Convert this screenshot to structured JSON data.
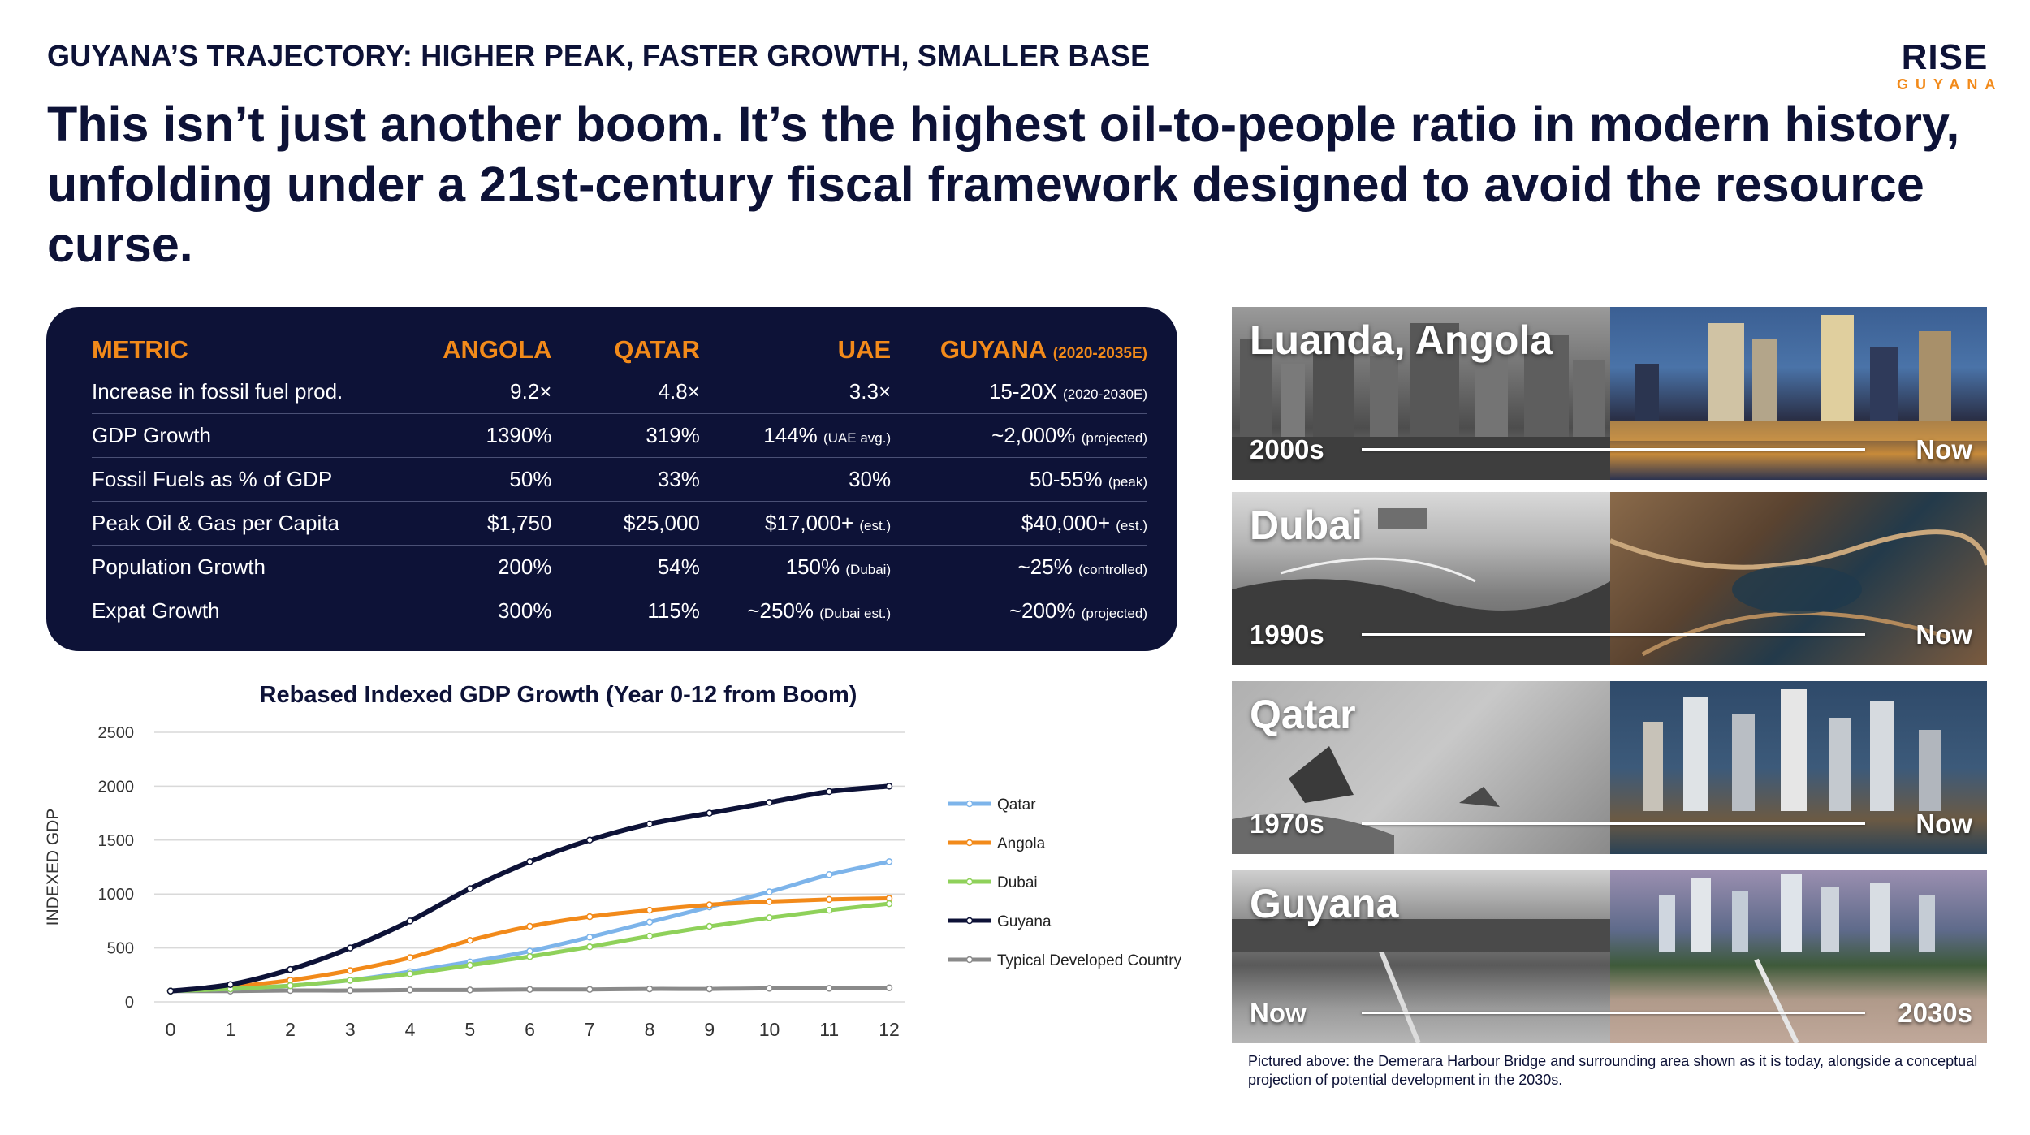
{
  "header": {
    "eyebrow": "GUYANA’S TRAJECTORY: HIGHER PEAK, FASTER GROWTH, SMALLER BASE",
    "headline": "This isn’t just another boom. It’s the highest oil-to-people ratio in modern history, unfolding under a 21st-century fiscal framework designed to avoid the resource curse."
  },
  "logo": {
    "main": "RISE",
    "sub": "GUYANA"
  },
  "table": {
    "headers": [
      "METRIC",
      "ANGOLA",
      "QATAR",
      "UAE",
      "GUYANA"
    ],
    "guyana_note": "(2020-2035E)",
    "rows": [
      {
        "metric": "Increase in fossil fuel prod.",
        "angola": "9.2×",
        "qatar": "4.8×",
        "uae": "3.3×",
        "uae_note": "",
        "guyana": "15-20X",
        "guyana_note": "(2020-2030E)"
      },
      {
        "metric": "GDP Growth",
        "angola": "1390%",
        "qatar": "319%",
        "uae": "144%",
        "uae_note": "(UAE avg.)",
        "guyana": "~2,000%",
        "guyana_note": "(projected)"
      },
      {
        "metric": "Fossil Fuels as % of GDP",
        "angola": "50%",
        "qatar": "33%",
        "uae": "30%",
        "uae_note": "",
        "guyana": "50-55%",
        "guyana_note": "(peak)"
      },
      {
        "metric": "Peak Oil & Gas per Capita",
        "angola": "$1,750",
        "qatar": "$25,000",
        "uae": "$17,000+",
        "uae_note": "(est.)",
        "guyana": "$40,000+",
        "guyana_note": "(est.)"
      },
      {
        "metric": "Population Growth",
        "angola": "200%",
        "qatar": "54%",
        "uae": "150%",
        "uae_note": "(Dubai)",
        "guyana": "~25%",
        "guyana_note": "(controlled)"
      },
      {
        "metric": "Expat Growth",
        "angola": "300%",
        "qatar": "115%",
        "uae": "~250%",
        "uae_note": "(Dubai est.)",
        "guyana": "~200%",
        "guyana_note": "(projected)"
      }
    ]
  },
  "chart_data": {
    "type": "line",
    "title": "Rebased Indexed GDP Growth (Year 0-12 from Boom)",
    "xlabel": "",
    "ylabel": "INDEXED GDP",
    "x": [
      0,
      1,
      2,
      3,
      4,
      5,
      6,
      7,
      8,
      9,
      10,
      11,
      12
    ],
    "ylim": [
      0,
      2500
    ],
    "yticks": [
      0,
      500,
      1000,
      1500,
      2000,
      2500
    ],
    "grid": true,
    "legend_position": "right",
    "series": [
      {
        "name": "Qatar",
        "color": "#7db4ea",
        "values": [
          100,
          120,
          150,
          200,
          280,
          370,
          470,
          600,
          740,
          880,
          1020,
          1180,
          1300
        ]
      },
      {
        "name": "Angola",
        "color": "#f28a1a",
        "values": [
          100,
          140,
          200,
          290,
          410,
          570,
          700,
          790,
          850,
          900,
          930,
          950,
          960
        ]
      },
      {
        "name": "Dubai",
        "color": "#8fd15a",
        "values": [
          100,
          120,
          150,
          200,
          260,
          340,
          420,
          510,
          610,
          700,
          780,
          850,
          910
        ]
      },
      {
        "name": "Guyana",
        "color": "#0d1237",
        "values": [
          100,
          160,
          300,
          500,
          750,
          1050,
          1300,
          1500,
          1650,
          1750,
          1850,
          1950,
          2000
        ]
      },
      {
        "name": "Typical Developed Country",
        "color": "#8a8a8a",
        "values": [
          100,
          100,
          105,
          105,
          110,
          110,
          115,
          115,
          120,
          120,
          125,
          125,
          130
        ]
      }
    ]
  },
  "comparisons": [
    {
      "city": "Luanda, Angola",
      "from": "2000s",
      "to": "Now"
    },
    {
      "city": "Dubai",
      "from": "1990s",
      "to": "Now"
    },
    {
      "city": "Qatar",
      "from": "1970s",
      "to": "Now"
    },
    {
      "city": "Guyana",
      "from": "Now",
      "to": "2030s"
    }
  ],
  "caption": "Pictured above: the Demerara Harbour Bridge and surrounding area shown as it is today, alongside a conceptual projection of potential development in the 2030s."
}
